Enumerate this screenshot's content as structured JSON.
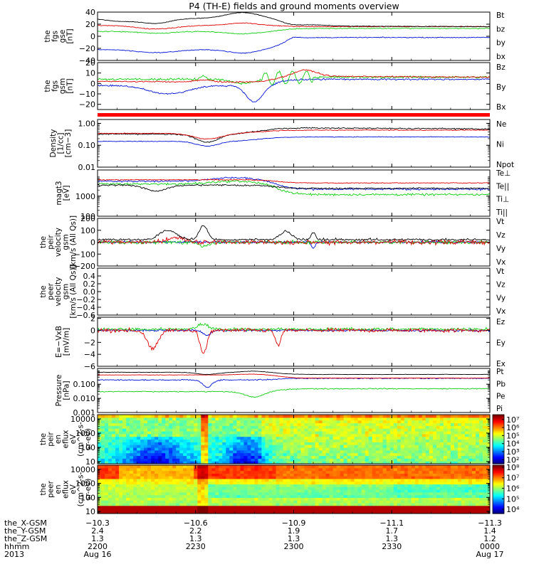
{
  "title": "P4 (TH-E) fields and ground moments overview",
  "colors": {
    "black": "#000000",
    "red": "#e00000",
    "green": "#10d010",
    "blue": "#0010d8"
  },
  "chart_data": [
    {
      "type": "line",
      "ylabel": [
        "the",
        "fgs",
        "gse",
        "[nT]"
      ],
      "ylim": [
        -40,
        40
      ],
      "log": false,
      "ticks": [
        "40",
        "20",
        "0",
        "−20",
        "−40"
      ],
      "tick_values": [
        40,
        20,
        0,
        -20,
        -40
      ],
      "legend": [
        "Bt",
        "bz",
        "by",
        "bx"
      ],
      "legend_colors": [
        "black",
        "red",
        "green",
        "blue"
      ]
    },
    {
      "type": "line",
      "ylabel": [
        "the",
        "fgs",
        "gsm",
        "[nT]"
      ],
      "ylim": [
        -25,
        20
      ],
      "log": false,
      "ticks": [
        "20",
        "10",
        "0",
        "−10",
        "−20"
      ],
      "tick_values": [
        20,
        10,
        0,
        -10,
        -20
      ],
      "legend": [
        "Bz",
        "By",
        "Bx"
      ],
      "legend_colors": [
        "red",
        "green",
        "blue"
      ]
    },
    {
      "type": "line",
      "ylabel": [
        "Density",
        "[1/cc]",
        "[cm−3]"
      ],
      "ylim": [
        0.01,
        1.5
      ],
      "log": true,
      "ticks": [
        "1.00",
        "0.10",
        "0.01"
      ],
      "tick_values": [
        1,
        0.1,
        0.01
      ],
      "legend": [
        "Ne",
        "Ni",
        "Npot"
      ],
      "legend_colors": [
        "red",
        "black",
        "blue"
      ]
    },
    {
      "type": "line",
      "ylabel": [
        "magt3",
        "[eV]"
      ],
      "ylim": [
        100,
        20000
      ],
      "log": true,
      "ticks": [
        "1000",
        "100"
      ],
      "tick_values": [
        1000,
        100
      ],
      "legend": [
        "Te⊥",
        "Te||",
        "Ti⊥",
        "Ti||"
      ],
      "legend_colors": [
        "red",
        "black",
        "blue",
        "green"
      ]
    },
    {
      "type": "line",
      "ylabel": [
        "the",
        "peir",
        "velocity",
        "gsm",
        "[km/s (All Qs)]"
      ],
      "ylim": [
        -200,
        200
      ],
      "log": false,
      "ticks": [
        "200",
        "100",
        "0",
        "−100",
        "−200"
      ],
      "tick_values": [
        200,
        100,
        0,
        -100,
        -200
      ],
      "legend": [
        "Vt",
        "Vz",
        "Vy",
        "Vx"
      ],
      "legend_colors": [
        "black",
        "red",
        "green",
        "blue"
      ]
    },
    {
      "type": "line",
      "ylabel": [
        "the",
        "peer",
        "velocity",
        "gsm",
        "[km/s (All Qs)]"
      ],
      "ylim": [
        -0.6,
        0.6
      ],
      "log": false,
      "ticks": [
        "0.4",
        "0.2",
        "0.0",
        "−0.2",
        "−0.4",
        "−0.6"
      ],
      "tick_values": [
        0.4,
        0.2,
        0,
        -0.2,
        -0.4,
        -0.6
      ],
      "legend": [
        "Vt",
        "Vz",
        "Vy",
        "Vx"
      ],
      "legend_colors": [
        "black",
        "red",
        "green",
        "blue"
      ]
    },
    {
      "type": "line",
      "ylabel": [
        "E=−VxB",
        "[mV/m]"
      ],
      "ylim": [
        -6,
        2.2
      ],
      "log": false,
      "ticks": [
        "2",
        "0",
        "−2",
        "−4",
        "−6"
      ],
      "tick_values": [
        2,
        0,
        -2,
        -4,
        -6
      ],
      "legend": [
        "Ez",
        "Ey",
        "Ex"
      ],
      "legend_colors": [
        "red",
        "green",
        "blue"
      ]
    },
    {
      "type": "line",
      "ylabel": [
        "Pressure",
        "[nPa]"
      ],
      "ylim": [
        0.001,
        1.3
      ],
      "log": true,
      "ticks": [
        "0.100",
        "0.010",
        "0.001"
      ],
      "tick_values": [
        0.1,
        0.01,
        0.001
      ],
      "legend": [
        "Pt",
        "Pb",
        "Pe",
        "Pi"
      ],
      "legend_colors": [
        "black",
        "red",
        "green",
        "blue"
      ]
    },
    {
      "type": "heatmap",
      "ylabel": [
        "the",
        "peir",
        "en",
        "eflux",
        "eV",
        "(cm^2-s-",
        "sr-eV)"
      ],
      "ylim": [
        7,
        20000
      ],
      "log": true,
      "ticks": [
        "10000",
        "1000",
        "100",
        "10"
      ],
      "tick_values": [
        10000,
        1000,
        100,
        10
      ],
      "colorbar_ticks": [
        "10⁷",
        "10⁶",
        "10⁵",
        "10⁴",
        "10³",
        "10²"
      ],
      "colorbar_exp": [
        7,
        6,
        5,
        4,
        3,
        2
      ],
      "clim_exp": [
        1.5,
        7.6
      ]
    },
    {
      "type": "heatmap",
      "ylabel": [
        "the",
        "peer",
        "en",
        "eflux",
        "eV",
        "(cm^2-s-",
        "sr-eV)"
      ],
      "ylim": [
        7,
        20000
      ],
      "log": true,
      "ticks": [
        "10000",
        "1000",
        "100",
        "10"
      ],
      "tick_values": [
        10000,
        1000,
        100,
        10
      ],
      "colorbar_ticks": [
        "10⁸",
        "10⁷",
        "10⁶",
        "10⁵",
        "10⁴"
      ],
      "colorbar_exp": [
        8,
        7,
        6,
        5,
        4
      ],
      "clim_exp": [
        3.6,
        8.2
      ]
    }
  ],
  "x_axis": {
    "row_labels": [
      "the_X-GSM",
      "the_Y-GSM",
      "the_Z-GSM",
      "hhmm",
      "2013"
    ],
    "ticks": [
      {
        "t": 0.0,
        "X": "−10.3",
        "Y": "2.4",
        "Z": "1.3",
        "hhmm": "2200",
        "date": "Aug 16"
      },
      {
        "t": 0.2,
        "X": "−10.6",
        "Y": "2.2",
        "Z": "1.3",
        "hhmm": "2230",
        "date": ""
      },
      {
        "t": 0.4,
        "X": "−10.9",
        "Y": "1.9",
        "Z": "1.3",
        "hhmm": "2300",
        "date": ""
      },
      {
        "t": 0.6,
        "X": "−11.1",
        "Y": "1.7",
        "Z": "1.3",
        "hhmm": "2330",
        "date": ""
      },
      {
        "t": 0.8,
        "X": "−11.3",
        "Y": "1.4",
        "Z": "1.2",
        "hhmm": "0000",
        "date": "Aug 17"
      }
    ]
  }
}
